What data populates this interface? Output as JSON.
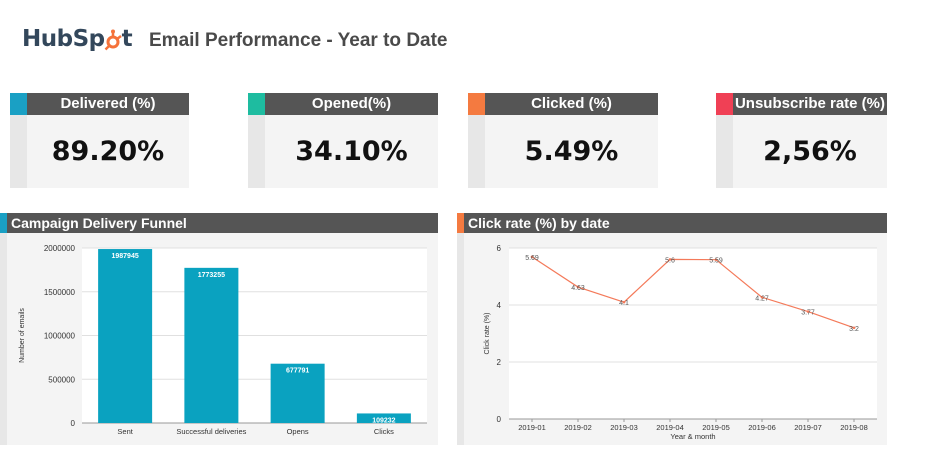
{
  "header": {
    "logo": "HubSpot",
    "title": "Email Performance - Year to Date"
  },
  "kpis": [
    {
      "label": "Delivered (%)",
      "value": "89.20%",
      "accent": "#1aa0c4"
    },
    {
      "label": "Opened(%)",
      "value": "34.10%",
      "accent": "#1ebca0"
    },
    {
      "label": "Clicked (%)",
      "value": "5.49%",
      "accent": "#f47a40"
    },
    {
      "label": "Unsubscribe rate (%)",
      "value": "2,56%",
      "accent": "#f04055"
    }
  ],
  "funnel_panel": {
    "title": "Campaign Delivery Funnel",
    "accent": "#1aa0c4"
  },
  "click_panel": {
    "title": "Click rate (%) by date",
    "accent": "#f47a40"
  },
  "chart_data": [
    {
      "type": "bar",
      "title": "Campaign Delivery Funnel",
      "categories": [
        "Sent",
        "Successful deliveries",
        "Opens",
        "Clicks"
      ],
      "values": [
        1987945,
        1773255,
        677791,
        109232
      ],
      "data_labels": [
        "1987945",
        "1773255",
        "677791",
        "109232"
      ],
      "xlabel": "",
      "ylabel": "Number of emails",
      "ylim": [
        0,
        2000000
      ],
      "yticks": [
        0,
        500000,
        1000000,
        1500000,
        2000000
      ],
      "ytick_labels": [
        "0",
        "500000",
        "1000000",
        "1500000",
        "2000000"
      ],
      "color": "#0aa2c0",
      "grid": true
    },
    {
      "type": "line",
      "title": "Click rate (%) by date",
      "categories": [
        "2019-01",
        "2019-02",
        "2019-03",
        "2019-04",
        "2019-05",
        "2019-06",
        "2019-07",
        "2019-08"
      ],
      "values": [
        5.69,
        4.63,
        4.1,
        5.6,
        5.59,
        4.27,
        3.77,
        3.2
      ],
      "data_labels": [
        "5.69",
        "4.63",
        "4.1",
        "5.6",
        "5.59",
        "4.27",
        "3.77",
        "3.2"
      ],
      "xlabel": "Year & month",
      "ylabel": "Click rate (%)",
      "ylim": [
        0,
        6
      ],
      "yticks": [
        0,
        2,
        4,
        6
      ],
      "ytick_labels": [
        "0",
        "2",
        "4",
        "6"
      ],
      "color": "#f47a5a",
      "grid": true
    }
  ]
}
